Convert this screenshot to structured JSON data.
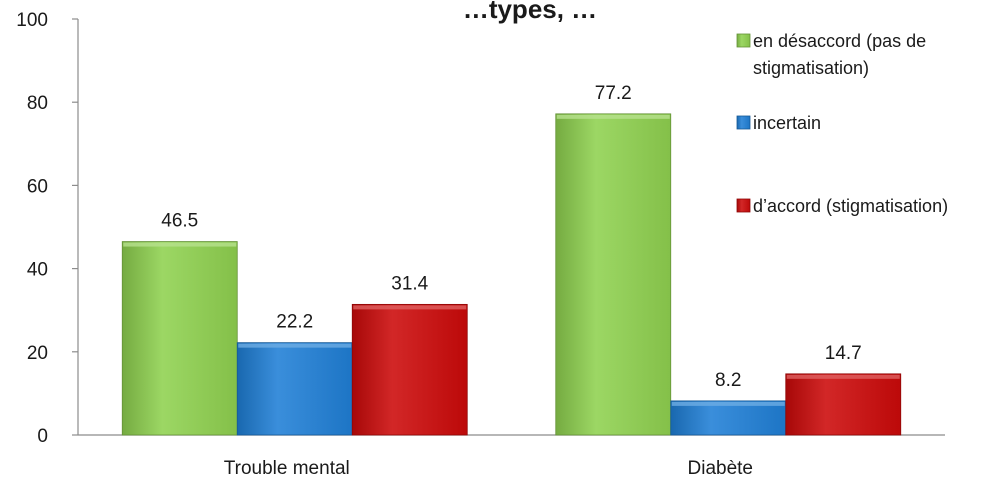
{
  "chart_data": {
    "type": "bar",
    "title": "…types, …",
    "categories": [
      "Trouble mental",
      "Diabète"
    ],
    "series": [
      {
        "name": "en désaccord (pas de stigmatisation)",
        "legend_lines": [
          "en désaccord (pas de",
          "stigmatisation)"
        ],
        "color": "#8fd14f",
        "values": [
          46.5,
          77.2
        ]
      },
      {
        "name": "incertain",
        "legend_lines": [
          "incertain"
        ],
        "color": "#1f7fd6",
        "values": [
          22.2,
          8.2
        ]
      },
      {
        "name": "d’accord (stigmatisation)",
        "legend_lines": [
          "d’accord (stigmatisation)"
        ],
        "color": "#cc0a0a",
        "values": [
          31.4,
          14.7
        ]
      }
    ],
    "ylim": [
      0,
      100
    ],
    "yticks": [
      0,
      20,
      40,
      60,
      80,
      100
    ],
    "grid": false,
    "legend_position": "top-right",
    "data_labels": true
  }
}
